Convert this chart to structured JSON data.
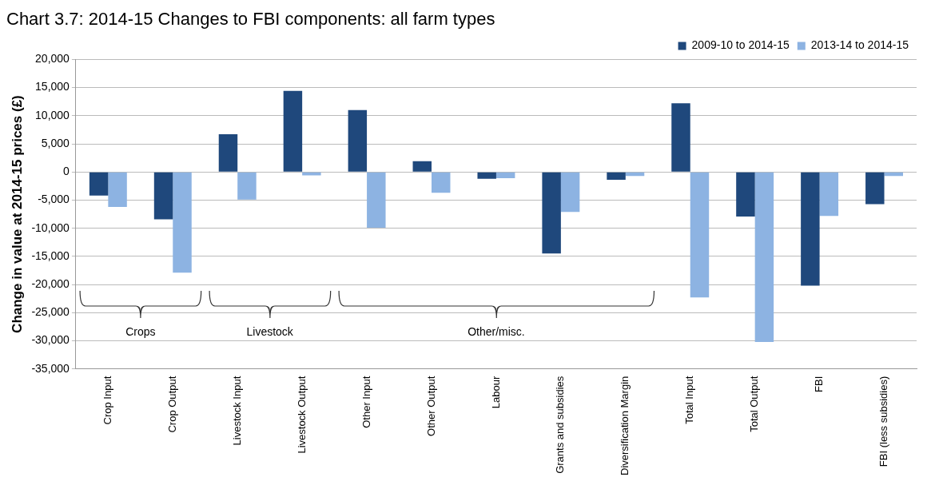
{
  "chart_data": {
    "type": "bar",
    "title": "Chart 3.7: 2014-15 Changes to FBI components: all farm types",
    "ylabel": "Change in value at 2014-15 prices (£)",
    "categories": [
      "Crop Input",
      "Crop Output",
      "Livestock Input",
      "Livestock Output",
      "Other Input",
      "Other Output",
      "Labour",
      "Grants and subsidies",
      "Diversification Margin",
      "Total Input",
      "Total Output",
      "FBI",
      "FBI (less subsidies)"
    ],
    "series": [
      {
        "name": "2009-10 to 2014-15",
        "color": "#1f487c",
        "values": [
          -4200,
          -8400,
          6700,
          14400,
          11000,
          1900,
          -1200,
          -14500,
          -1400,
          12200,
          -7900,
          -20200,
          -5700
        ]
      },
      {
        "name": "2013-14 to 2014-15",
        "color": "#8db3e2",
        "values": [
          -6200,
          -17900,
          -4900,
          -600,
          -9900,
          -3700,
          -1100,
          -7100,
          -700,
          -22300,
          -30200,
          -7800,
          -700
        ]
      }
    ],
    "ylim": [
      -35000,
      20000
    ],
    "yticks": [
      {
        "value": -35000,
        "label": "-35,000"
      },
      {
        "value": -30000,
        "label": "-30,000"
      },
      {
        "value": -25000,
        "label": "-25,000"
      },
      {
        "value": -20000,
        "label": "-20,000"
      },
      {
        "value": -15000,
        "label": "-15,000"
      },
      {
        "value": -10000,
        "label": "-10,000"
      },
      {
        "value": -5000,
        "label": "-5,000"
      },
      0,
      {
        "value": 5000,
        "label": "5,000"
      },
      {
        "value": 10000,
        "label": "10,000"
      },
      {
        "value": 15000,
        "label": "15,000"
      },
      {
        "value": 20000,
        "label": "20,000"
      }
    ],
    "grid": "y",
    "legend": "top right",
    "annotations": [
      "Crops",
      "Livestock",
      "Other/misc."
    ]
  }
}
